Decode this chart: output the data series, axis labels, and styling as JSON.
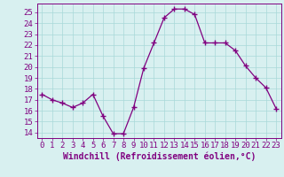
{
  "x": [
    0,
    1,
    2,
    3,
    4,
    5,
    6,
    7,
    8,
    9,
    10,
    11,
    12,
    13,
    14,
    15,
    16,
    17,
    18,
    19,
    20,
    21,
    22,
    23
  ],
  "y": [
    17.5,
    17.0,
    16.7,
    16.3,
    16.7,
    17.5,
    15.5,
    13.9,
    13.9,
    16.3,
    19.9,
    22.2,
    24.5,
    25.3,
    25.3,
    24.8,
    22.2,
    22.2,
    22.2,
    21.5,
    20.1,
    19.0,
    18.1,
    16.2
  ],
  "line_color": "#800080",
  "marker": "+",
  "marker_size": 4,
  "xlim": [
    -0.5,
    23.5
  ],
  "ylim": [
    13.5,
    25.8
  ],
  "yticks": [
    14,
    15,
    16,
    17,
    18,
    19,
    20,
    21,
    22,
    23,
    24,
    25
  ],
  "xticks": [
    0,
    1,
    2,
    3,
    4,
    5,
    6,
    7,
    8,
    9,
    10,
    11,
    12,
    13,
    14,
    15,
    16,
    17,
    18,
    19,
    20,
    21,
    22,
    23
  ],
  "xlabel": "Windchill (Refroidissement éolien,°C)",
  "background_color": "#d8f0f0",
  "grid_color": "#a8d8d8",
  "label_color": "#800080",
  "font_size": 6.5,
  "xlabel_fontsize": 7.0
}
